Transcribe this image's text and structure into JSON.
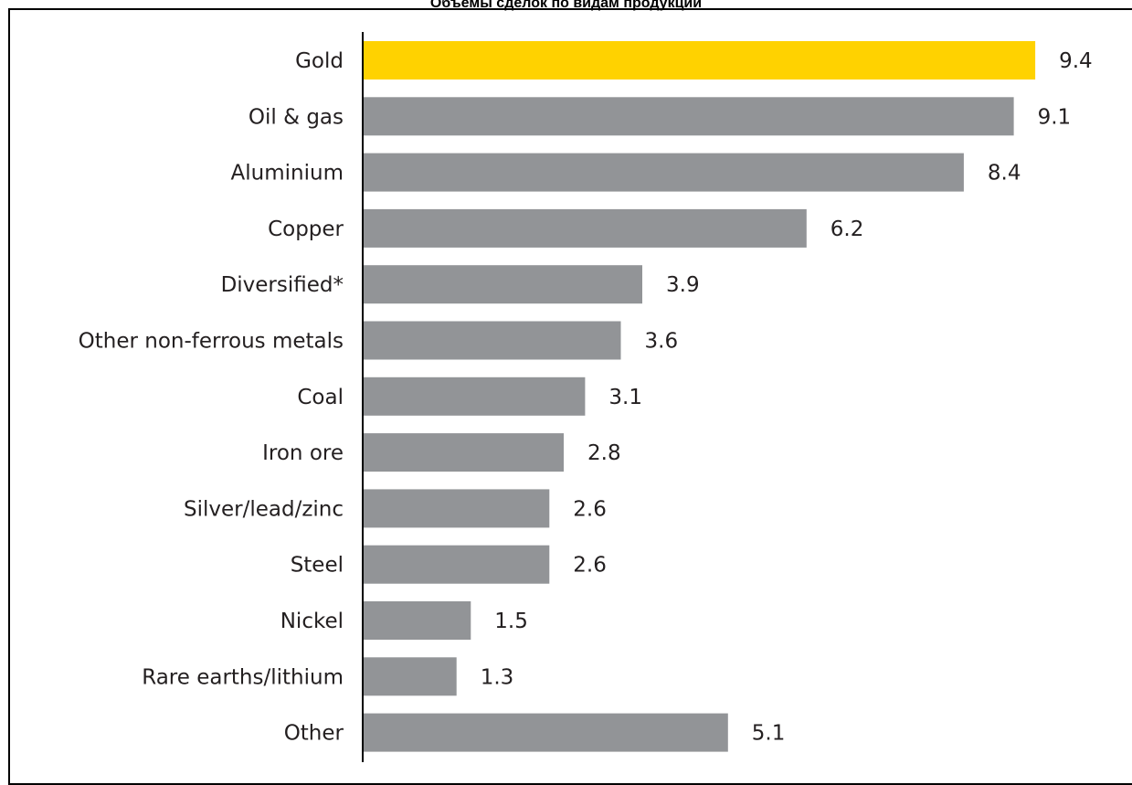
{
  "title": "Объемы сделок по видам продукции",
  "chart_data": {
    "type": "bar",
    "orientation": "horizontal",
    "categories": [
      "Gold",
      "Oil & gas",
      "Aluminium",
      "Copper",
      "Diversified*",
      "Other non-ferrous metals",
      "Coal",
      "Iron ore",
      "Silver/lead/zinc",
      "Steel",
      "Nickel",
      "Rare earths/lithium",
      "Other"
    ],
    "values": [
      9.4,
      9.1,
      8.4,
      6.2,
      3.9,
      3.6,
      3.1,
      2.8,
      2.6,
      2.6,
      1.5,
      1.3,
      5.1
    ],
    "value_labels": [
      "9.4",
      "9.1",
      "8.4",
      "6.2",
      "3.9",
      "3.6",
      "3.1",
      "2.8",
      "2.6",
      "2.6",
      "1.5",
      "1.3",
      "5.1"
    ],
    "highlight_index": 0,
    "colors": {
      "highlight": "#ffd200",
      "default": "#929497",
      "axis": "#000000",
      "text": "#231f20"
    },
    "grid": false,
    "legend": "none"
  }
}
